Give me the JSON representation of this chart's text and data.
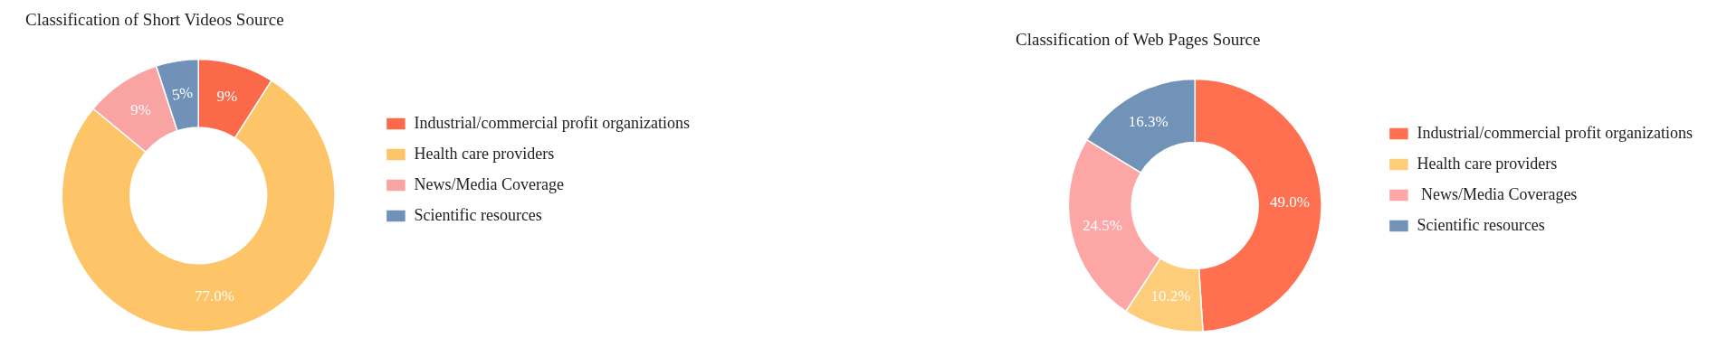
{
  "chart_data": [
    {
      "type": "donut",
      "title": "Classification of Short Videos Source",
      "categories": [
        "Industrial/commercial profit organizations",
        "Health care providers",
        "News/Media Coverage",
        "Scientific resources"
      ],
      "values": [
        9,
        77,
        9,
        5
      ],
      "colors": [
        "#fa6a4a",
        "#fdc468",
        "#f9a3a3",
        "#7092b8"
      ],
      "value_labels": [
        "9%",
        "77.0%",
        "9%",
        "5%"
      ],
      "legend": "right"
    },
    {
      "type": "donut",
      "title": "Classification of Web Pages Source",
      "categories": [
        "Industrial/commercial profit organizations",
        "Health care providers",
        " News/Media Coverages",
        "Scientific resources"
      ],
      "values": [
        49.0,
        10.2,
        24.5,
        16.3
      ],
      "colors": [
        "#ff7050",
        "#fdcd7a",
        "#fca6a6",
        "#7293b8"
      ],
      "value_labels": [
        "49.0%",
        "10.2%",
        "24.5%",
        "16.3%"
      ],
      "legend": "right"
    }
  ]
}
